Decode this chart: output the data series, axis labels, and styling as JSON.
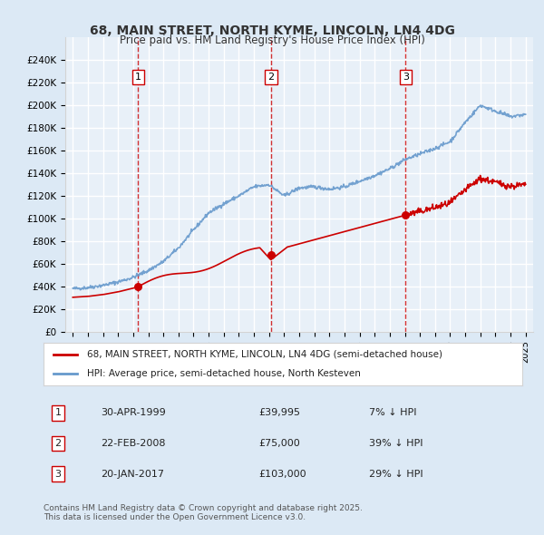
{
  "title": "68, MAIN STREET, NORTH KYME, LINCOLN, LN4 4DG",
  "subtitle": "Price paid vs. HM Land Registry's House Price Index (HPI)",
  "legend_line1": "68, MAIN STREET, NORTH KYME, LINCOLN, LN4 4DG (semi-detached house)",
  "legend_line2": "HPI: Average price, semi-detached house, North Kesteven",
  "transactions": [
    {
      "num": 1,
      "date": "30-APR-1999",
      "price": "£39,995",
      "pct": "7% ↓ HPI",
      "year": 1999.33
    },
    {
      "num": 2,
      "date": "22-FEB-2008",
      "price": "£75,000",
      "pct": "39% ↓ HPI",
      "year": 2008.13
    },
    {
      "num": 3,
      "date": "20-JAN-2017",
      "price": "£103,000",
      "pct": "29% ↓ HPI",
      "year": 2017.05
    }
  ],
  "transaction_prices": [
    39995,
    75000,
    103000
  ],
  "copyright": "Contains HM Land Registry data © Crown copyright and database right 2025.\nThis data is licensed under the Open Government Licence v3.0.",
  "bg_color": "#dce9f5",
  "plot_bg": "#e8f0f8",
  "red_color": "#cc0000",
  "blue_color": "#6699cc",
  "ylim": [
    0,
    260000
  ],
  "yticks": [
    0,
    20000,
    40000,
    60000,
    80000,
    100000,
    120000,
    140000,
    160000,
    180000,
    200000,
    220000,
    240000
  ],
  "xlim": [
    1994.5,
    2025.5
  ]
}
